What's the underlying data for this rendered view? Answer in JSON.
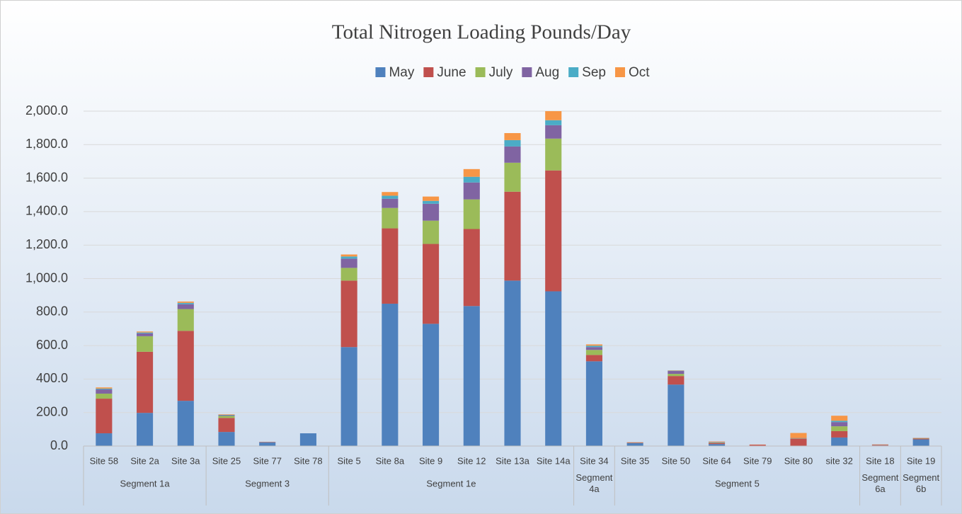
{
  "chart_data": {
    "type": "stacked_bar",
    "title": "Total Nitrogen Loading Pounds/Day",
    "groups": [
      {
        "name": "Segment 1a",
        "categories": [
          "Site 58",
          "Site 2a",
          "Site 3a"
        ]
      },
      {
        "name": "Segment 3",
        "categories": [
          "Site 25",
          "Site 77",
          "Site 78"
        ]
      },
      {
        "name": "Segment 1e",
        "categories": [
          "Site 5",
          "Site 8a",
          "Site 9",
          "Site 12",
          "Site 13a",
          "Site 14a"
        ]
      },
      {
        "name": "Segment 4a",
        "categories": [
          "Site 34"
        ]
      },
      {
        "name": "Segment 5",
        "categories": [
          "Site 35",
          "Site 50",
          "Site 64",
          "Site 79",
          "Site 80",
          "site 32"
        ]
      },
      {
        "name": "Segment 6a",
        "categories": [
          "Site 18"
        ]
      },
      {
        "name": "Segment 6b",
        "categories": [
          "Site 19"
        ]
      }
    ],
    "series": [
      {
        "name": "May",
        "color": "#4f81bd",
        "values": [
          76,
          198,
          270,
          84,
          21,
          76,
          591,
          850,
          730,
          836,
          988,
          924,
          506,
          17,
          367,
          12,
          2,
          2,
          51,
          3,
          40
        ]
      },
      {
        "name": "June",
        "color": "#c0504d",
        "values": [
          207,
          365,
          418,
          84,
          2,
          0,
          397,
          450,
          477,
          460,
          531,
          722,
          38,
          3,
          51,
          5,
          6,
          42,
          38,
          4,
          5
        ]
      },
      {
        "name": "July",
        "color": "#9bbb59",
        "values": [
          30,
          93,
          130,
          12,
          1,
          0,
          76,
          122,
          139,
          177,
          173,
          190,
          30,
          1,
          13,
          3,
          0,
          2,
          29,
          1,
          2
        ]
      },
      {
        "name": "Aug",
        "color": "#8064a2",
        "values": [
          25,
          17,
          29,
          4,
          1,
          0,
          55,
          55,
          101,
          101,
          97,
          80,
          17,
          1,
          17,
          3,
          0,
          2,
          25,
          1,
          1
        ]
      },
      {
        "name": "Sep",
        "color": "#4bacc6",
        "values": [
          5,
          5,
          8,
          2,
          0,
          0,
          13,
          18,
          17,
          34,
          38,
          30,
          8,
          0,
          2,
          1,
          0,
          0,
          8,
          0,
          0
        ]
      },
      {
        "name": "Oct",
        "color": "#f79646",
        "values": [
          7,
          6,
          8,
          3,
          0,
          0,
          12,
          22,
          26,
          46,
          42,
          54,
          8,
          1,
          2,
          3,
          1,
          30,
          30,
          1,
          1
        ]
      }
    ],
    "ylim": [
      0,
      2000
    ],
    "yticks": [
      {
        "value": 0,
        "label": "0.0"
      },
      {
        "value": 200,
        "label": "200.0"
      },
      {
        "value": 400,
        "label": "400.0"
      },
      {
        "value": 600,
        "label": "600.0"
      },
      {
        "value": 800,
        "label": "800.0"
      },
      {
        "value": 1000,
        "label": "1,000.0"
      },
      {
        "value": 1200,
        "label": "1,200.0"
      },
      {
        "value": 1400,
        "label": "1,400.0"
      },
      {
        "value": 1600,
        "label": "1,600.0"
      },
      {
        "value": 1800,
        "label": "1,800.0"
      },
      {
        "value": 2000,
        "label": "2,000.0"
      }
    ],
    "grid": true,
    "legend": "top"
  }
}
